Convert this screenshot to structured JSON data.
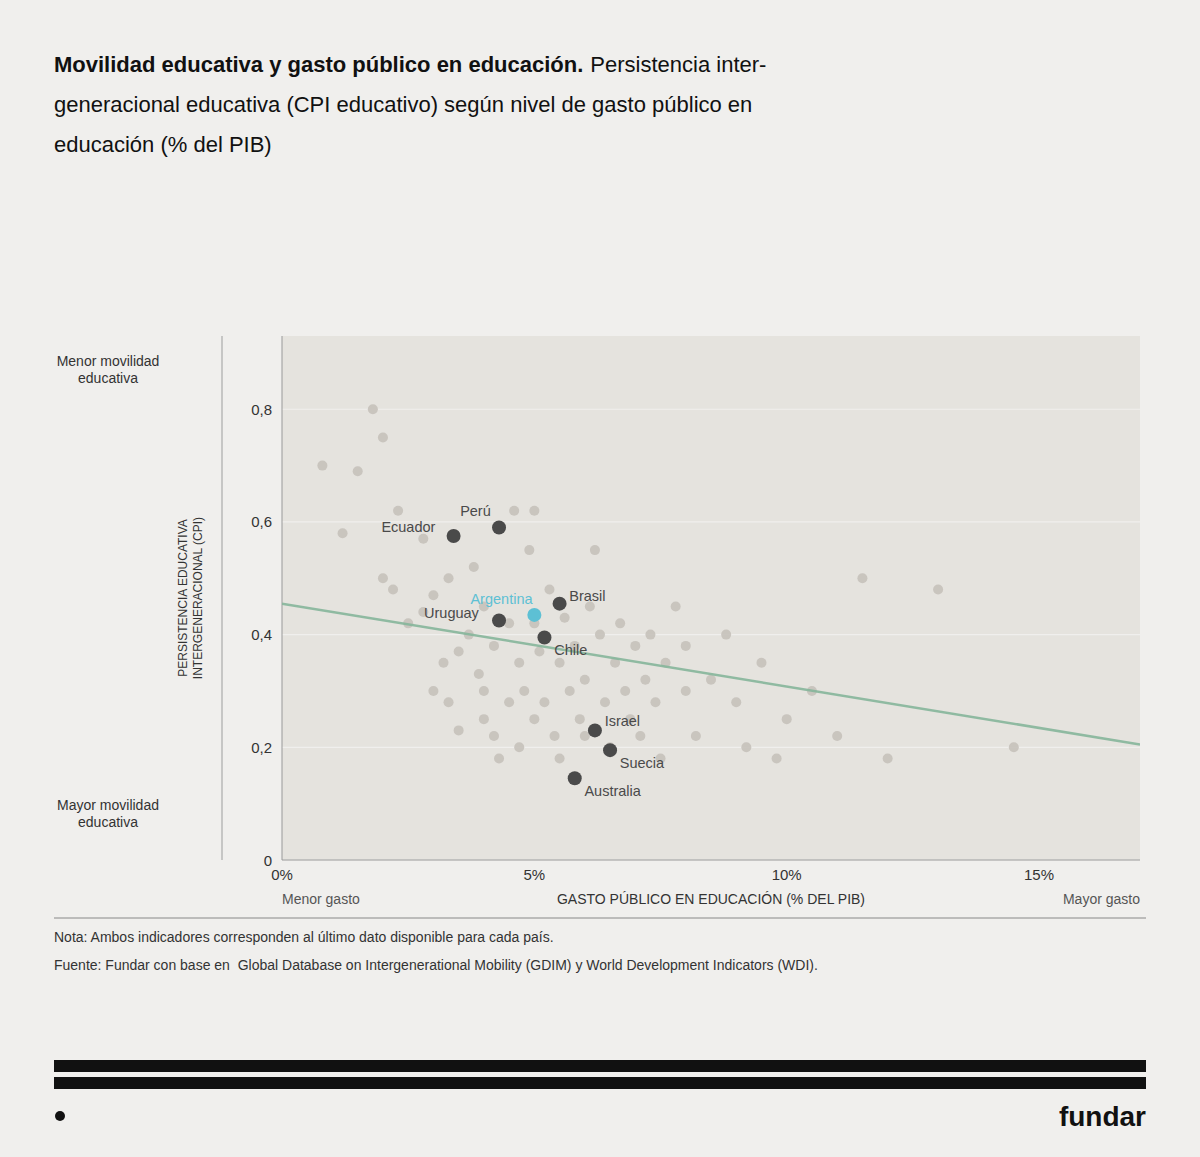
{
  "chart_data": {
    "type": "scatter",
    "title": "Movilidad educativa y gasto público en educación.",
    "subtitle": "Persistencia inter-\ngeneracional educativa (CPI educativo) según nivel de gasto público en\neducación (% del PIB)",
    "xlabel": "GASTO PÚBLICO EN EDUCACIÓN (% DEL PIB)",
    "xlabel_left": "Menor gasto",
    "xlabel_right": "Mayor gasto",
    "ylabel": "PERSISTENCIA EDUCATIVA\nINTERGENERACIONAL (CPI)",
    "ylabel_top": "Menor movilidad\neducativa",
    "ylabel_bottom": "Mayor movilidad\neducativa",
    "note": "Nota: Ambos indicadores corresponden al último dato disponible para cada país.",
    "source": "Fuente: Fundar con base en  Global Database on Intergenerational Mobility (GDIM) y World Development Indicators (WDI).",
    "brand": "fundar",
    "xlim": [
      0,
      17
    ],
    "ylim": [
      0,
      0.93
    ],
    "xticks": [
      {
        "value": 0,
        "label": "0%"
      },
      {
        "value": 5,
        "label": "5%"
      },
      {
        "value": 10,
        "label": "10%"
      },
      {
        "value": 15,
        "label": "15%"
      }
    ],
    "yticks": [
      0,
      {
        "value": 0.2,
        "label": "0,2"
      },
      {
        "value": 0.4,
        "label": "0,4"
      },
      {
        "value": 0.6,
        "label": "0,6"
      },
      {
        "value": 0.8,
        "label": "0,8"
      }
    ],
    "grid": true,
    "series": [
      {
        "color": "#c5c1ba",
        "x": [
          0.8,
          1.2,
          1.5,
          1.8,
          2.0,
          2.0,
          2.2,
          2.3,
          2.5,
          2.8,
          2.8,
          3.0,
          3.0,
          3.2,
          3.3,
          3.3,
          3.5,
          3.5,
          3.7,
          3.8,
          3.9,
          4.0,
          4.0,
          4.0,
          4.2,
          4.2,
          4.3,
          4.5,
          4.5,
          4.6,
          4.7,
          4.7,
          4.8,
          4.9,
          5.0,
          5.0,
          5.0,
          5.1,
          5.2,
          5.3,
          5.4,
          5.5,
          5.5,
          5.6,
          5.7,
          5.8,
          5.9,
          6.0,
          6.0,
          6.1,
          6.2,
          6.3,
          6.4,
          6.5,
          6.6,
          6.7,
          6.8,
          6.9,
          7.0,
          7.1,
          7.2,
          7.3,
          7.4,
          7.5,
          7.6,
          7.8,
          8.0,
          8.0,
          8.2,
          8.5,
          8.8,
          9.0,
          9.2,
          9.5,
          9.8,
          10.0,
          10.5,
          11.0,
          11.5,
          12.0,
          13.0,
          14.5
        ],
        "values": [
          0.7,
          0.58,
          0.69,
          0.8,
          0.75,
          0.5,
          0.48,
          0.62,
          0.42,
          0.57,
          0.44,
          0.3,
          0.47,
          0.35,
          0.5,
          0.28,
          0.37,
          0.23,
          0.4,
          0.52,
          0.33,
          0.45,
          0.25,
          0.3,
          0.22,
          0.38,
          0.18,
          0.28,
          0.42,
          0.62,
          0.35,
          0.2,
          0.3,
          0.55,
          0.62,
          0.42,
          0.25,
          0.37,
          0.28,
          0.48,
          0.22,
          0.35,
          0.18,
          0.43,
          0.3,
          0.38,
          0.25,
          0.32,
          0.22,
          0.45,
          0.55,
          0.4,
          0.28,
          0.2,
          0.35,
          0.42,
          0.3,
          0.25,
          0.38,
          0.22,
          0.32,
          0.4,
          0.28,
          0.18,
          0.35,
          0.45,
          0.3,
          0.38,
          0.22,
          0.32,
          0.4,
          0.28,
          0.2,
          0.35,
          0.18,
          0.25,
          0.3,
          0.22,
          0.5,
          0.18,
          0.48,
          0.2
        ]
      },
      {
        "type": "line",
        "color": "#85b59a",
        "x": [
          0,
          17
        ],
        "values": [
          0.455,
          0.205
        ]
      },
      {
        "x": [
          3.4,
          4.3,
          4.3,
          5.0,
          5.5,
          5.2,
          6.2,
          6.5,
          5.8
        ],
        "values": [
          0.575,
          0.59,
          0.425,
          0.435,
          0.455,
          0.395,
          0.23,
          0.195,
          0.145
        ],
        "labels": [
          "Ecuador",
          "Perú",
          "Uruguay",
          "Argentina",
          "Brasil",
          "Chile",
          "Israel",
          "Suecia",
          "Australia"
        ],
        "colors": [
          "#4a4a4a",
          "#4a4a4a",
          "#4a4a4a",
          "#5dc0d4",
          "#4a4a4a",
          "#4a4a4a",
          "#4a4a4a",
          "#4a4a4a",
          "#4a4a4a"
        ]
      }
    ]
  }
}
